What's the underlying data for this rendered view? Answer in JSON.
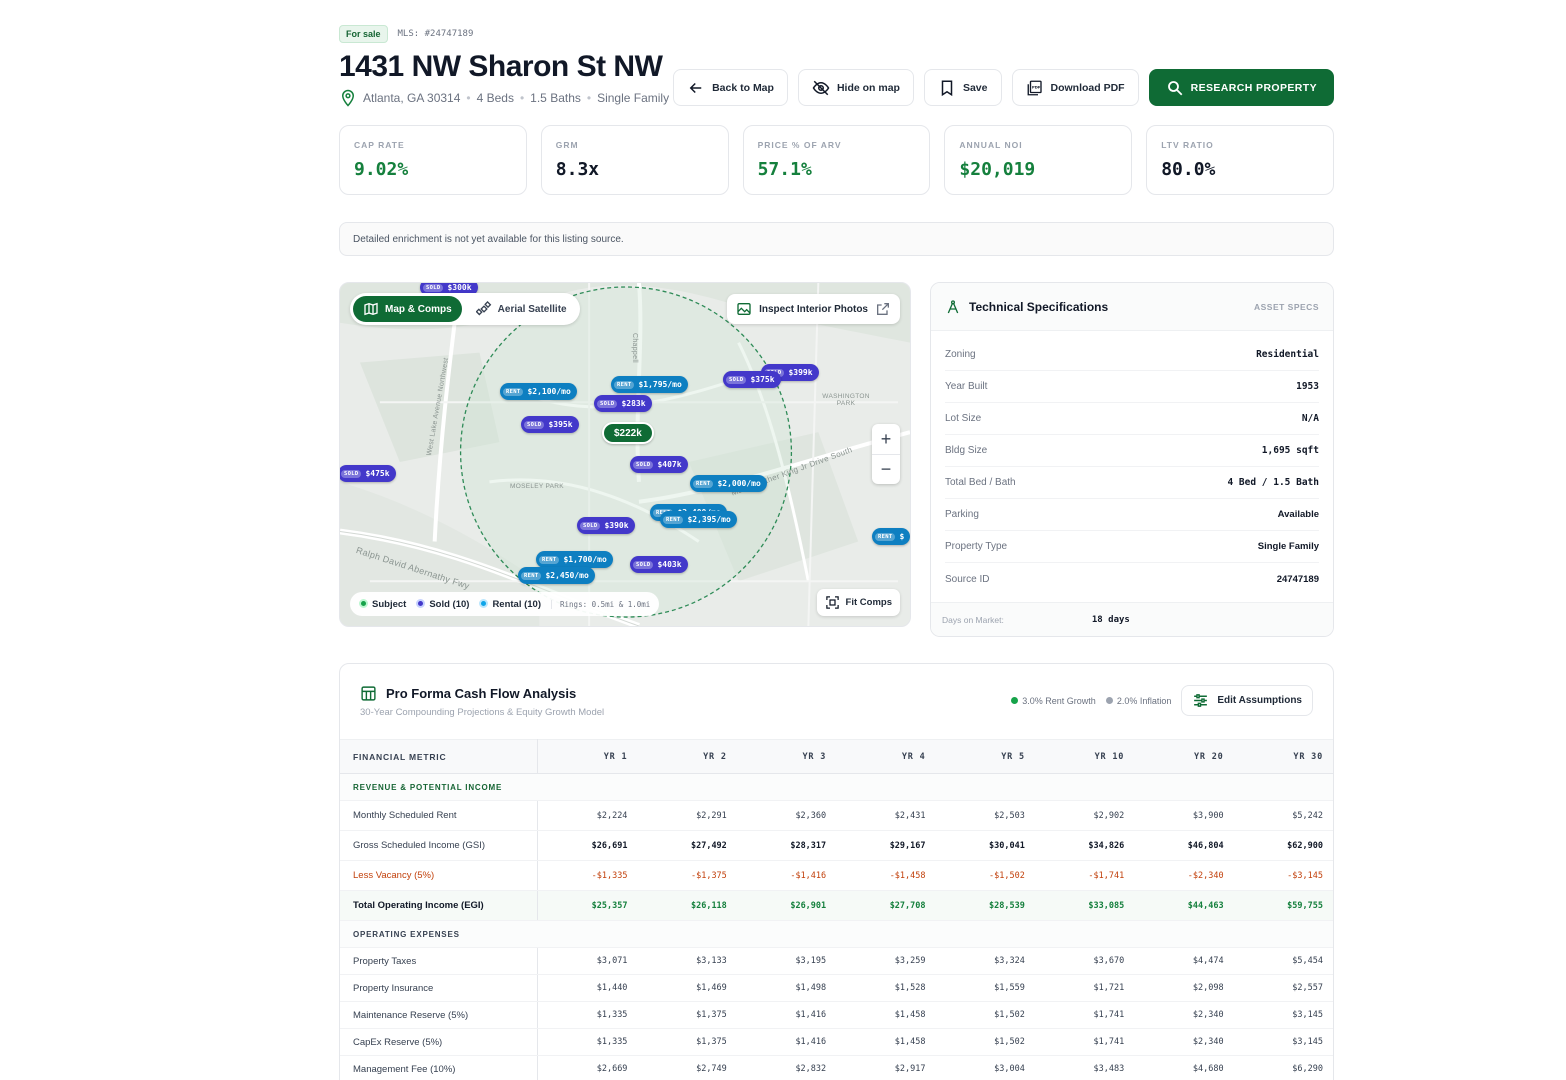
{
  "header": {
    "badge": "For sale",
    "mls": "MLS: #24747189",
    "title": "1431 NW Sharon St NW",
    "location": "Atlanta, GA 30314",
    "beds": "4 Beds",
    "baths": "1.5 Baths",
    "type": "Single Family",
    "sep": "•"
  },
  "actions": {
    "back": "Back to Map",
    "hide": "Hide on map",
    "save": "Save",
    "download": "Download PDF",
    "research": "RESEARCH PROPERTY"
  },
  "kpis": [
    {
      "label": "CAP RATE",
      "value": "9.02%"
    },
    {
      "label": "GRM",
      "value": "8.3x"
    },
    {
      "label": "PRICE % OF ARV",
      "value": "57.1%"
    },
    {
      "label": "ANNUAL NOI",
      "value": "$20,019"
    },
    {
      "label": "LTV RATIO",
      "value": "80.0%"
    }
  ],
  "notice": "Detailed enrichment is not yet available for this listing source.",
  "map": {
    "tab_map": "Map & Comps",
    "tab_aerial": "Aerial Satellite",
    "inspect": "Inspect Interior Photos",
    "fit": "Fit Comps",
    "legend": {
      "subject": "Subject",
      "sold": "Sold (10)",
      "rental": "Rental (10)",
      "rings": "Rings: 0.5mi & 1.0mi"
    },
    "labels": {
      "moseley": "MOSELEY PARK",
      "washington": "WASHINGTON PARK",
      "ralph": "Ralph David Abernathy Fwy",
      "westlake": "West Lake Avenue Northwest",
      "chappell": "Chappell",
      "mlk": "Martin Luther King Jr Drive South"
    },
    "subject_price": "$222k",
    "sold_tag": "SOLD",
    "rent_tag": "RENT",
    "pins": {
      "p1": "$300k",
      "p2": "$399k",
      "p3": "$375k",
      "p4": "$2,100/mo",
      "p5": "$1,795/mo",
      "p6": "$283k",
      "p7": "$395k",
      "p8": "$475k",
      "p9": "$407k",
      "p10": "$2,000/mo",
      "p11": "$2,400/mo",
      "p12": "$2,395/mo",
      "p13": "$390k",
      "p14": "$1,700/mo",
      "p15": "$2,450/mo",
      "p16": "$403k",
      "p17": "$"
    },
    "colors": {
      "sold": "#4338ca",
      "rent": "#0e7fc1",
      "subject": "#0f6b35"
    }
  },
  "specs": {
    "title": "Technical Specifications",
    "tag": "ASSET SPECS",
    "rows": [
      {
        "k": "Zoning",
        "v": "Residential"
      },
      {
        "k": "Year Built",
        "v": "1953"
      },
      {
        "k": "Lot Size",
        "v": "N/A"
      },
      {
        "k": "Bldg Size",
        "v": "1,695 sqft"
      },
      {
        "k": "Total Bed / Bath",
        "v": "4 Bed / 1.5 Bath"
      },
      {
        "k": "Parking",
        "v": "Available"
      },
      {
        "k": "Property Type",
        "v": "Single Family"
      },
      {
        "k": "Source ID",
        "v": "24747189"
      }
    ],
    "dom_label": "Days on Market:",
    "dom_value": "18 days"
  },
  "proforma": {
    "title": "Pro Forma Cash Flow Analysis",
    "subtitle": "30-Year Compounding Projections & Equity Growth Model",
    "rent_growth": "3.0% Rent Growth",
    "inflation": "2.0% Inflation",
    "edit": "Edit Assumptions",
    "headers": [
      "FINANCIAL METRIC",
      "YR 1",
      "YR 2",
      "YR 3",
      "YR 4",
      "YR 5",
      "YR 10",
      "YR 20",
      "YR 30"
    ],
    "sec_revenue": "REVENUE & POTENTIAL INCOME",
    "sec_opex": "OPERATING EXPENSES",
    "rows": {
      "rent": {
        "label": "Monthly Scheduled Rent",
        "v": [
          "$2,224",
          "$2,291",
          "$2,360",
          "$2,431",
          "$2,503",
          "$2,902",
          "$3,900",
          "$5,242"
        ]
      },
      "gsi": {
        "label": "Gross Scheduled Income (GSI)",
        "v": [
          "$26,691",
          "$27,492",
          "$28,317",
          "$29,167",
          "$30,041",
          "$34,826",
          "$46,804",
          "$62,900"
        ]
      },
      "vac": {
        "label": "Less Vacancy (5%)",
        "v": [
          "-$1,335",
          "-$1,375",
          "-$1,416",
          "-$1,458",
          "-$1,502",
          "-$1,741",
          "-$2,340",
          "-$3,145"
        ]
      },
      "egi": {
        "label": "Total Operating Income (EGI)",
        "v": [
          "$25,357",
          "$26,118",
          "$26,901",
          "$27,708",
          "$28,539",
          "$33,085",
          "$44,463",
          "$59,755"
        ]
      },
      "tax": {
        "label": "Property Taxes",
        "v": [
          "$3,071",
          "$3,133",
          "$3,195",
          "$3,259",
          "$3,324",
          "$3,670",
          "$4,474",
          "$5,454"
        ]
      },
      "ins": {
        "label": "Property Insurance",
        "v": [
          "$1,440",
          "$1,469",
          "$1,498",
          "$1,528",
          "$1,559",
          "$1,721",
          "$2,098",
          "$2,557"
        ]
      },
      "maint": {
        "label": "Maintenance Reserve (5%)",
        "v": [
          "$1,335",
          "$1,375",
          "$1,416",
          "$1,458",
          "$1,502",
          "$1,741",
          "$2,340",
          "$3,145"
        ]
      },
      "capex": {
        "label": "CapEx Reserve (5%)",
        "v": [
          "$1,335",
          "$1,375",
          "$1,416",
          "$1,458",
          "$1,502",
          "$1,741",
          "$2,340",
          "$3,145"
        ]
      },
      "mgmt": {
        "label": "Management Fee (10%)",
        "v": [
          "$2,669",
          "$2,749",
          "$2,832",
          "$2,917",
          "$3,004",
          "$3,483",
          "$4,680",
          "$6,290"
        ]
      }
    }
  }
}
